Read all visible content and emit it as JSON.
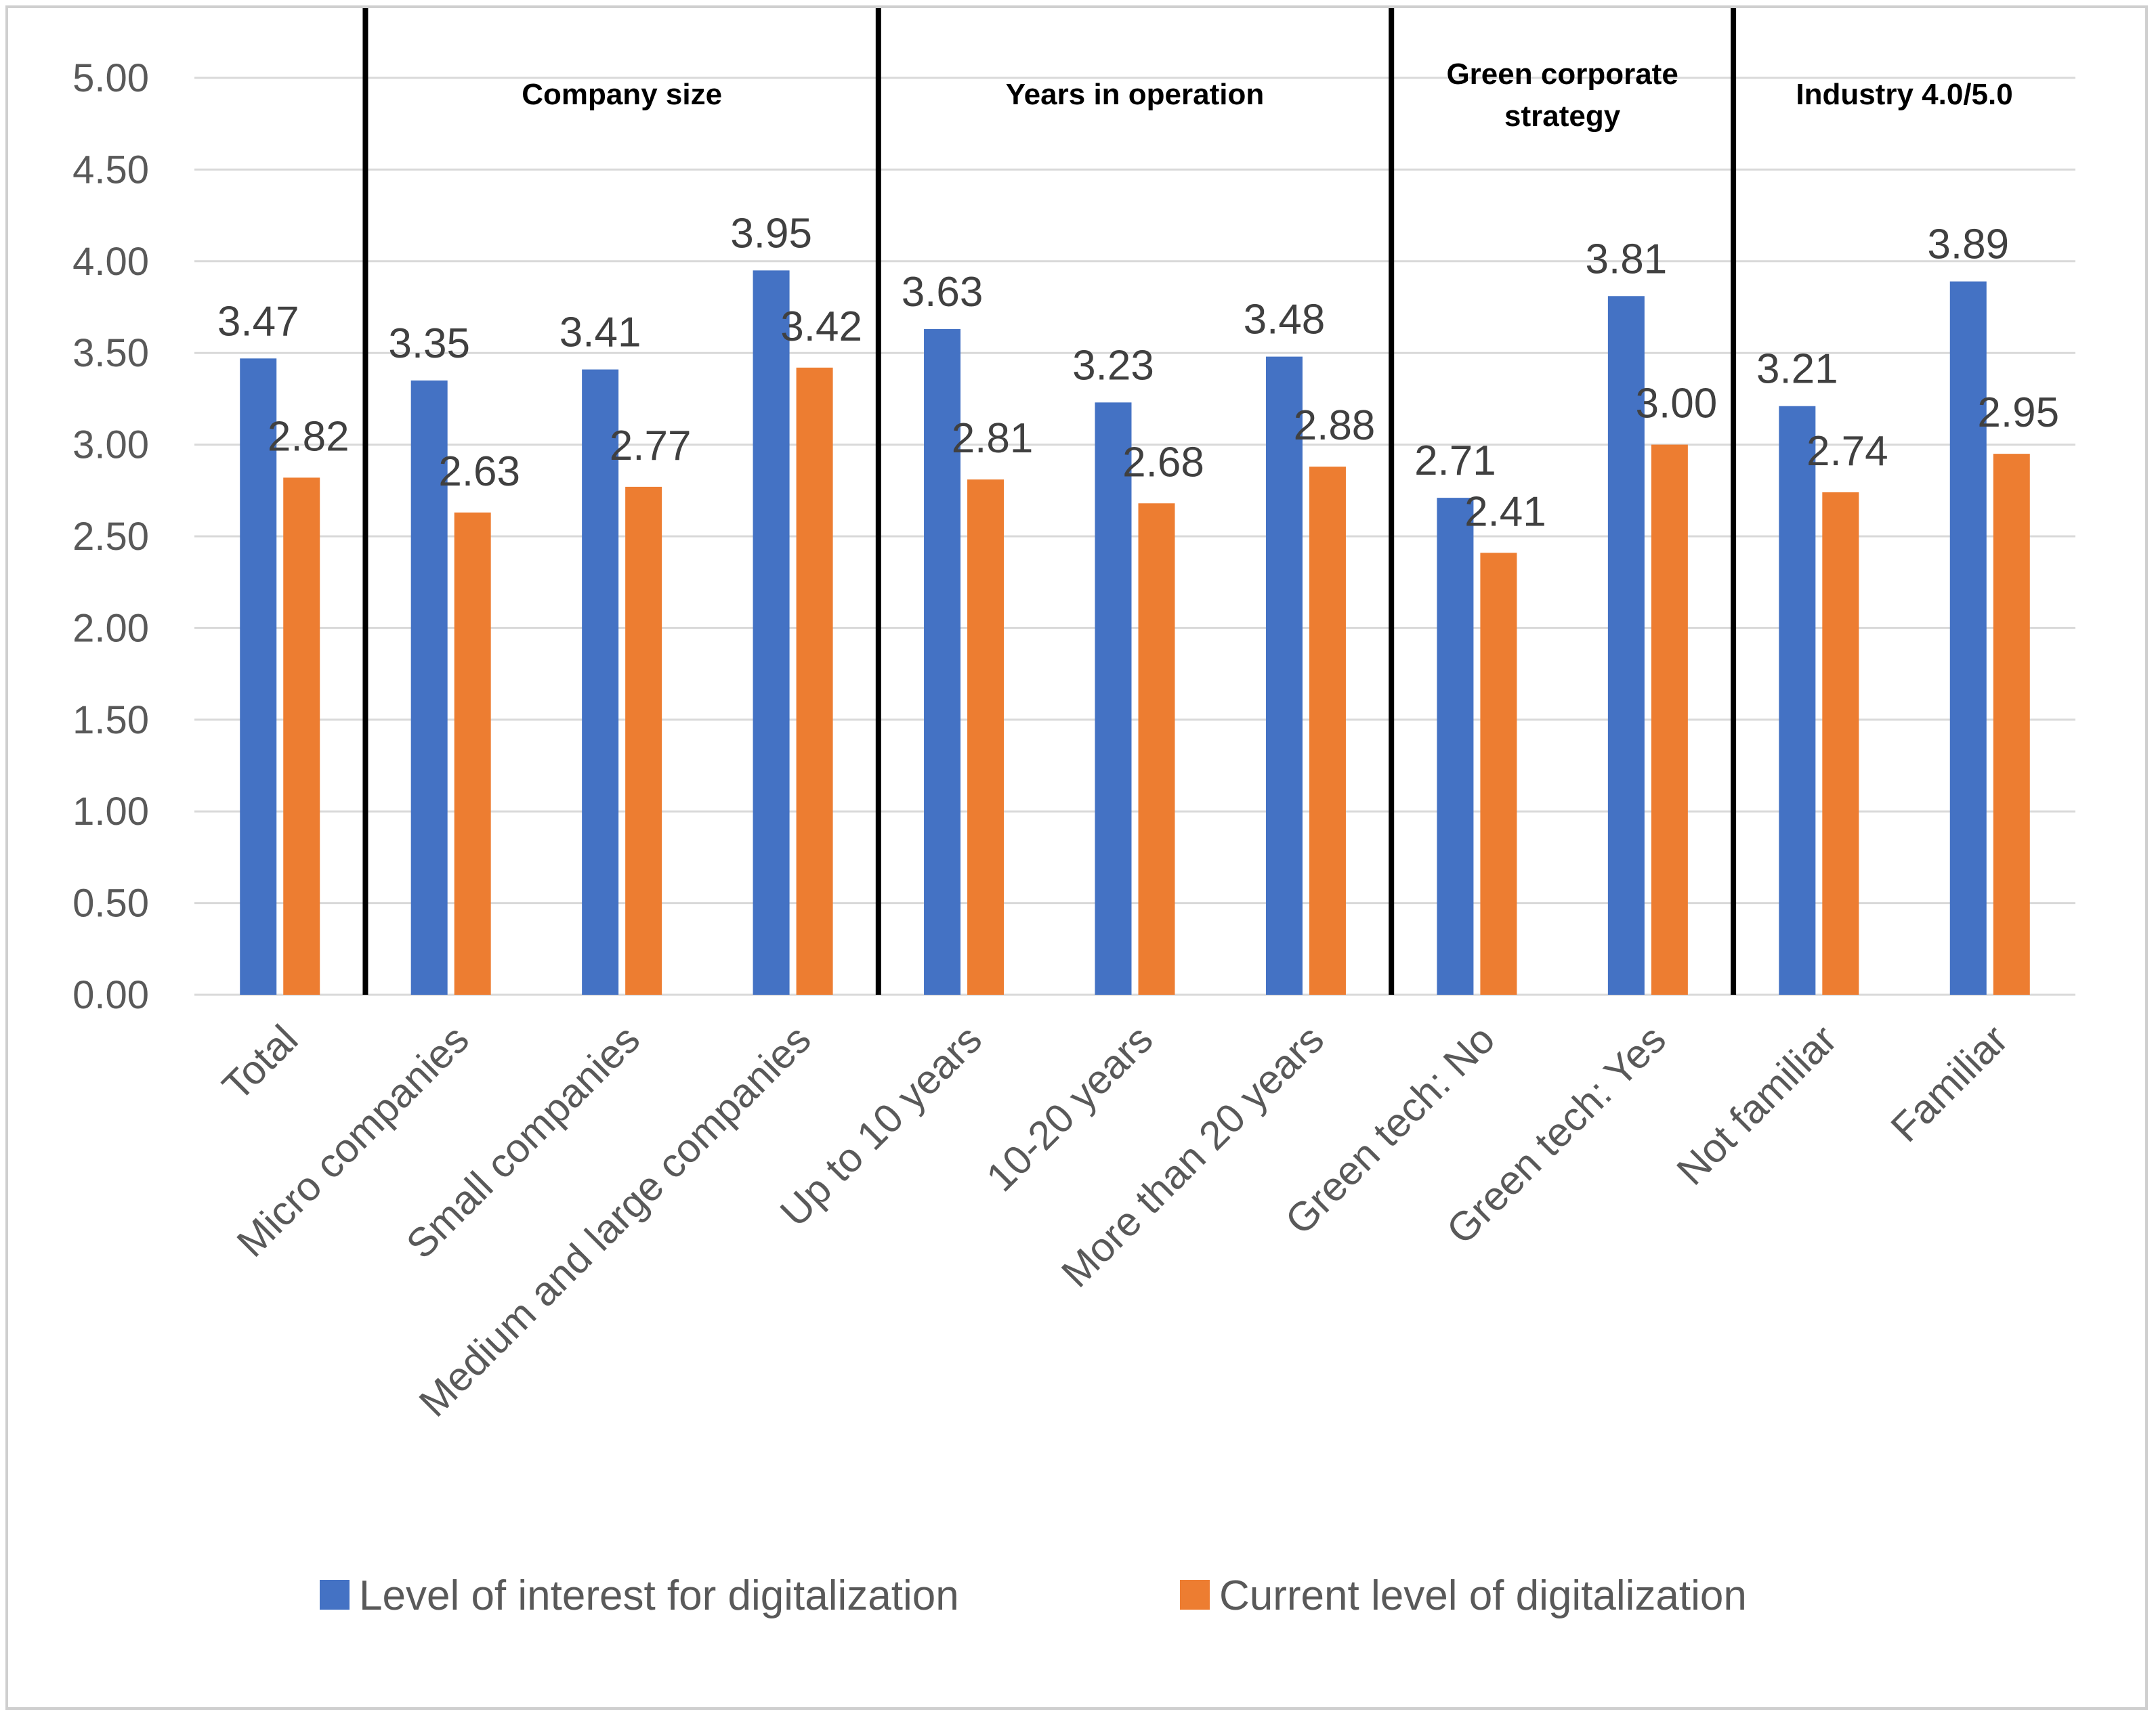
{
  "chart_data": {
    "type": "bar",
    "title": "",
    "xlabel": "",
    "ylabel": "",
    "ylim": [
      0,
      5
    ],
    "yticks": [
      "0.00",
      "0.50",
      "1.00",
      "1.50",
      "2.00",
      "2.50",
      "3.00",
      "3.50",
      "4.00",
      "4.50",
      "5.00"
    ],
    "grid": true,
    "legend_position": "bottom",
    "categories": [
      "Total",
      "Micro companies",
      "Small companies",
      "Medium and large companies",
      "Up to 10 years",
      "10-20 years",
      "More than 20 years",
      "Green tech: No",
      "Green tech: Yes",
      "Not familiar",
      "Familiar"
    ],
    "series": [
      {
        "name": "Level of interest for digitalization",
        "color": "#4472C4",
        "values": [
          3.47,
          3.35,
          3.41,
          3.95,
          3.63,
          3.23,
          3.48,
          2.71,
          3.81,
          3.21,
          3.89
        ],
        "labels": [
          "3.47",
          "3.35",
          "3.41",
          "3.95",
          "3.63",
          "3.23",
          "3.48",
          "2.71",
          "3.81",
          "3.21",
          "3.89"
        ]
      },
      {
        "name": "Current level of digitalization",
        "color": "#ED7D31",
        "values": [
          2.82,
          2.63,
          2.77,
          3.42,
          2.81,
          2.68,
          2.88,
          2.41,
          3.0,
          2.74,
          2.95
        ],
        "labels": [
          "2.82",
          "2.63",
          "2.77",
          "3.42",
          "2.81",
          "2.68",
          "2.88",
          "2.41",
          "3.00",
          "2.74",
          "2.95"
        ]
      }
    ],
    "groups": [
      {
        "label_lines": [
          "Company size"
        ],
        "start_index": 1,
        "end_index": 3
      },
      {
        "label_lines": [
          "Years in operation"
        ],
        "start_index": 4,
        "end_index": 6
      },
      {
        "label_lines": [
          "Green corporate",
          "strategy"
        ],
        "start_index": 7,
        "end_index": 8
      },
      {
        "label_lines": [
          "Industry 4.0/5.0"
        ],
        "start_index": 9,
        "end_index": 10
      }
    ],
    "separator_color": "#000000",
    "grid_color": "#d9d9d9"
  }
}
